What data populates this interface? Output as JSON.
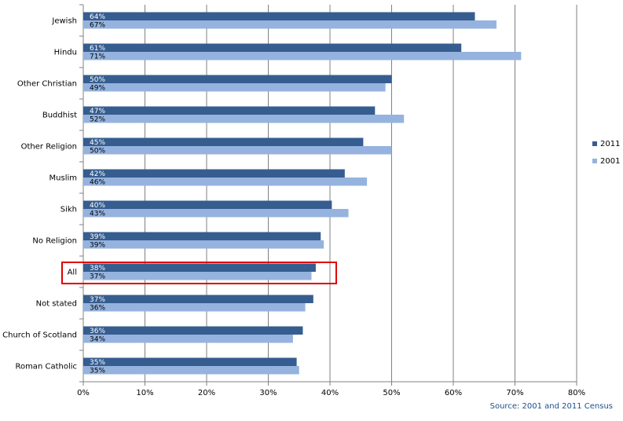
{
  "chart_data": {
    "type": "bar",
    "orientation": "horizontal",
    "categories": [
      "Jewish",
      "Hindu",
      "Other Christian",
      "Buddhist",
      "Other Religion",
      "Muslim",
      "Sikh",
      "No Religion",
      "All",
      "Not stated",
      "Church of Scotland",
      "Roman Catholic"
    ],
    "series": [
      {
        "name": "2011",
        "color": "#365d8f",
        "values": [
          63.5,
          61.3,
          50.0,
          47.3,
          45.4,
          42.4,
          40.3,
          38.5,
          37.7,
          37.3,
          35.6,
          34.6
        ],
        "labels": [
          "64%",
          "61%",
          "50%",
          "47%",
          "45%",
          "42%",
          "40%",
          "39%",
          "38%",
          "37%",
          "36%",
          "35%"
        ]
      },
      {
        "name": "2001",
        "color": "#95b3de",
        "values": [
          67.0,
          71.0,
          49.0,
          52.0,
          50.0,
          46.0,
          43.0,
          39.0,
          37.0,
          36.0,
          34.0,
          35.0
        ],
        "labels": [
          "67%",
          "71%",
          "49%",
          "52%",
          "50%",
          "46%",
          "43%",
          "39%",
          "37%",
          "36%",
          "34%",
          "35%"
        ]
      }
    ],
    "xlim": [
      0,
      80
    ],
    "ticks": [
      0,
      10,
      20,
      30,
      40,
      50,
      60,
      70,
      80
    ],
    "tick_labels": [
      "0%",
      "10%",
      "20%",
      "30%",
      "40%",
      "50%",
      "60%",
      "70%",
      "80%"
    ],
    "grid": true,
    "legend": "right",
    "highlight_category": "All",
    "highlight_color": "#e00000",
    "gridline_color": "#808080",
    "axis_color": "#808080"
  },
  "source": "Source: 2001 and 2011 Census"
}
